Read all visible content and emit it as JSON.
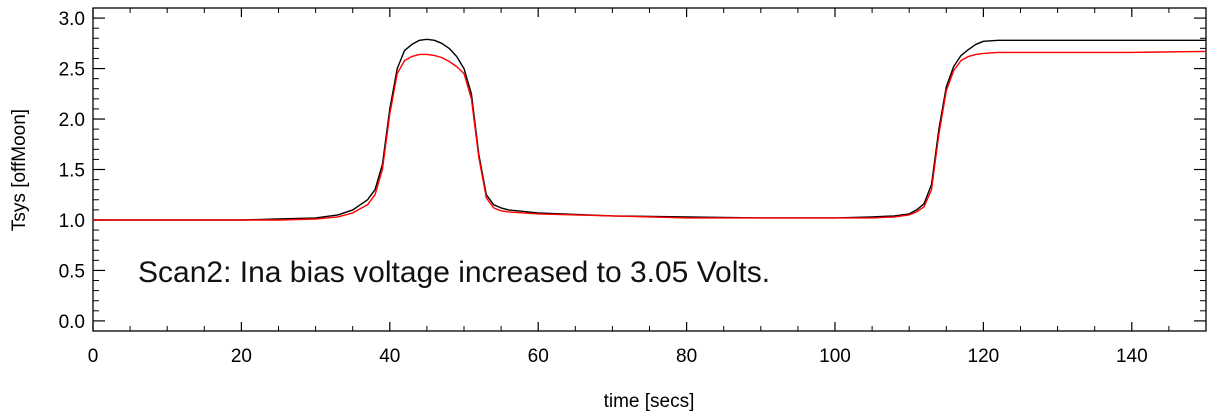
{
  "chart_data": {
    "type": "line",
    "title": "",
    "xlabel": "time [secs]",
    "ylabel": "Tsys [offMoon]",
    "xlim": [
      0,
      150
    ],
    "ylim": [
      -0.1,
      3.1
    ],
    "xticks": [
      0,
      20,
      40,
      60,
      80,
      100,
      120,
      140
    ],
    "xtick_labels": [
      "0",
      "20",
      "40",
      "60",
      "80",
      "100",
      "120",
      "140"
    ],
    "yticks": [
      0.0,
      0.5,
      1.0,
      1.5,
      2.0,
      2.5,
      3.0
    ],
    "ytick_labels": [
      "0.0",
      "0.5",
      "1.0",
      "1.5",
      "2.0",
      "2.5",
      "3.0"
    ],
    "grid": false,
    "annotation": "Scan2: Ina bias voltage increased to 3.05 Volts.",
    "series": [
      {
        "color": "#000000",
        "x": [
          0,
          10,
          20,
          25,
          30,
          33,
          35,
          37,
          38,
          39,
          40,
          41,
          42,
          43,
          44,
          45,
          46,
          47,
          48,
          49,
          50,
          51,
          52,
          53,
          54,
          55,
          56,
          60,
          70,
          80,
          90,
          100,
          105,
          108,
          110,
          111,
          112,
          113,
          114,
          115,
          116,
          117,
          118,
          119,
          120,
          122,
          125,
          130,
          140,
          150
        ],
        "y": [
          1.0,
          1.0,
          1.0,
          1.01,
          1.02,
          1.05,
          1.1,
          1.2,
          1.3,
          1.55,
          2.1,
          2.5,
          2.68,
          2.74,
          2.78,
          2.79,
          2.78,
          2.75,
          2.7,
          2.62,
          2.5,
          2.25,
          1.65,
          1.25,
          1.15,
          1.12,
          1.1,
          1.07,
          1.04,
          1.03,
          1.02,
          1.02,
          1.03,
          1.04,
          1.06,
          1.1,
          1.16,
          1.35,
          1.9,
          2.32,
          2.52,
          2.63,
          2.69,
          2.74,
          2.77,
          2.78,
          2.78,
          2.78,
          2.78,
          2.78
        ]
      },
      {
        "color": "#ff0000",
        "x": [
          0,
          10,
          20,
          25,
          30,
          33,
          35,
          37,
          38,
          39,
          40,
          41,
          42,
          43,
          44,
          45,
          46,
          47,
          48,
          49,
          50,
          51,
          52,
          53,
          54,
          55,
          56,
          60,
          70,
          80,
          90,
          100,
          105,
          108,
          110,
          111,
          112,
          113,
          114,
          115,
          116,
          117,
          118,
          119,
          120,
          122,
          125,
          130,
          140,
          150
        ],
        "y": [
          1.0,
          1.0,
          1.0,
          1.0,
          1.01,
          1.03,
          1.07,
          1.15,
          1.25,
          1.5,
          2.05,
          2.45,
          2.58,
          2.62,
          2.64,
          2.64,
          2.63,
          2.61,
          2.57,
          2.52,
          2.45,
          2.2,
          1.62,
          1.22,
          1.12,
          1.09,
          1.08,
          1.06,
          1.04,
          1.02,
          1.02,
          1.02,
          1.02,
          1.03,
          1.05,
          1.08,
          1.13,
          1.3,
          1.85,
          2.28,
          2.48,
          2.58,
          2.62,
          2.64,
          2.65,
          2.66,
          2.66,
          2.66,
          2.66,
          2.67
        ]
      }
    ]
  }
}
